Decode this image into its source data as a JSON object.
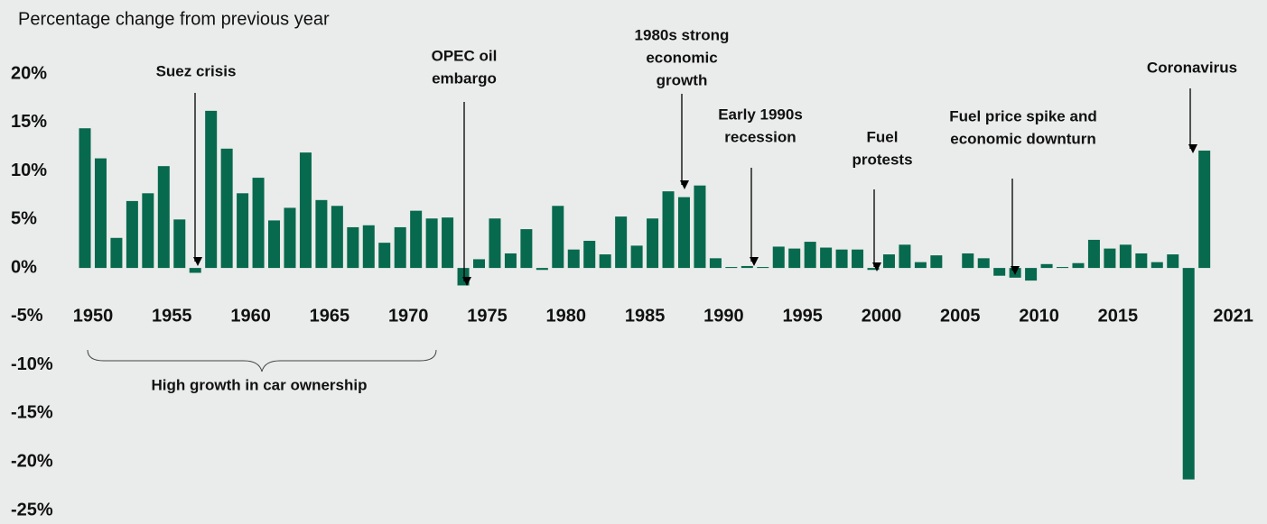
{
  "chart_data": {
    "type": "bar",
    "subtitle": "Percentage change from previous year",
    "color": "#07694e",
    "categories": [
      "1950",
      null,
      null,
      null,
      null,
      "1955",
      null,
      null,
      null,
      null,
      "1960",
      null,
      null,
      null,
      null,
      "1965",
      null,
      null,
      null,
      null,
      "1970",
      null,
      null,
      null,
      null,
      "1975",
      null,
      null,
      null,
      null,
      "1980",
      null,
      null,
      null,
      null,
      "1985",
      null,
      null,
      null,
      null,
      "1990",
      null,
      null,
      null,
      null,
      "1995",
      null,
      null,
      null,
      null,
      "2000",
      null,
      null,
      null,
      null,
      "2005",
      null,
      null,
      null,
      null,
      "2010",
      null,
      null,
      null,
      null,
      "2015",
      null,
      null,
      null,
      null,
      null,
      "2021"
    ],
    "values": [
      14.4,
      11.3,
      3.1,
      6.9,
      7.7,
      10.5,
      5.0,
      -0.5,
      16.2,
      12.3,
      7.7,
      9.3,
      4.9,
      6.2,
      11.9,
      7.0,
      6.4,
      4.2,
      4.4,
      2.6,
      4.2,
      5.9,
      5.1,
      5.2,
      -1.8,
      0.9,
      5.1,
      1.5,
      4.0,
      -0.2,
      6.4,
      1.9,
      2.8,
      1.4,
      5.3,
      2.3,
      5.1,
      7.9,
      7.3,
      8.5,
      1.0,
      0.1,
      0.2,
      0.1,
      2.2,
      2.0,
      2.7,
      2.1,
      1.9,
      1.9,
      -0.2,
      1.4,
      2.4,
      0.6,
      1.3,
      0.0,
      1.5,
      1.0,
      -0.8,
      -1.0,
      -1.3,
      0.4,
      0.1,
      0.5,
      2.9,
      2.0,
      2.4,
      1.5,
      0.6,
      1.4,
      -21.8,
      12.1
    ],
    "ylim": [
      -25,
      20
    ],
    "yticks": [
      {
        "value": -25,
        "label": "-25%"
      },
      {
        "value": -20,
        "label": "-20%"
      },
      {
        "value": -15,
        "label": "-15%"
      },
      {
        "value": -10,
        "label": "-10%"
      },
      {
        "value": -5,
        "label": "-5%"
      },
      {
        "value": 0,
        "label": "0%"
      },
      {
        "value": 5,
        "label": "5%"
      },
      {
        "value": 10,
        "label": "10%"
      },
      {
        "value": 15,
        "label": "15%"
      },
      {
        "value": 20,
        "label": "20%"
      }
    ],
    "annotations": [
      {
        "lines": [
          "Suez crisis"
        ]
      },
      {
        "lines": [
          "OPEC oil",
          "embargo"
        ]
      },
      {
        "lines": [
          "1980s strong",
          "economic",
          "growth"
        ]
      },
      {
        "lines": [
          "Early 1990s",
          "recession"
        ]
      },
      {
        "lines": [
          "Fuel",
          "protests"
        ]
      },
      {
        "lines": [
          "Fuel price spike and",
          "economic downturn"
        ]
      },
      {
        "lines": [
          "Coronavirus"
        ]
      },
      {
        "lines": [
          "High growth in car ownership"
        ]
      }
    ]
  }
}
